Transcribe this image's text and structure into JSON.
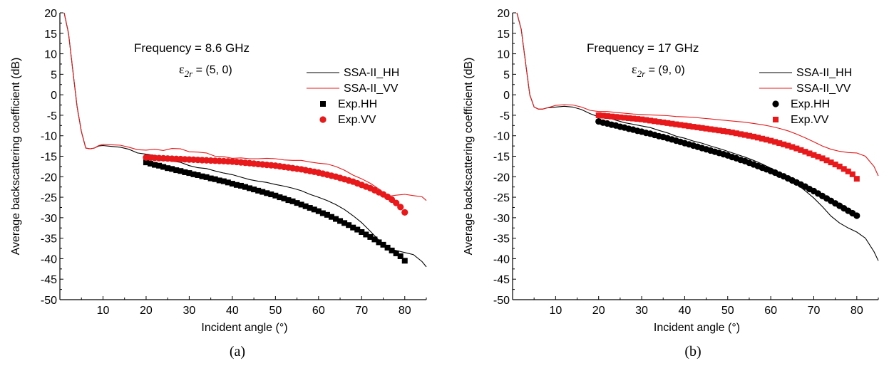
{
  "chart_data": [
    {
      "type": "line",
      "panel_label": "(a)",
      "annotation_freq": "Frequency = 8.6 GHz",
      "annotation_eps_symbol": "ε",
      "annotation_eps_sub": "2r",
      "annotation_eps_value": " = (5, 0)",
      "xlabel": "Incident angle (°)",
      "ylabel": "Average backscattering coefficient (dB)",
      "xlim": [
        0,
        85
      ],
      "ylim": [
        -50,
        20
      ],
      "xticks": [
        "10",
        "20",
        "30",
        "40",
        "50",
        "60",
        "70",
        "80"
      ],
      "yticks": [
        "20",
        "15",
        "10",
        "5",
        "0",
        "-5",
        "-10",
        "-15",
        "-20",
        "-25",
        "-30",
        "-35",
        "-40",
        "-45",
        "-50"
      ],
      "legend": [
        "SSA-II_HH",
        "SSA-II_VV",
        "Exp.HH",
        "Exp.VV"
      ],
      "series": [
        {
          "name": "SSA-II_HH",
          "kind": "line",
          "color": "#000000",
          "x": [
            1,
            2,
            3,
            4,
            5,
            6,
            7,
            8,
            9,
            10,
            12,
            14,
            16,
            18,
            20,
            22,
            24,
            26,
            28,
            30,
            32,
            34,
            36,
            38,
            40,
            42,
            44,
            46,
            48,
            50,
            52,
            54,
            56,
            58,
            60,
            62,
            64,
            66,
            68,
            70,
            72,
            74,
            76,
            78,
            80,
            82,
            84,
            85
          ],
          "y": [
            20,
            15,
            6,
            -3,
            -9,
            -13,
            -13.2,
            -13,
            -12.5,
            -12.4,
            -12.6,
            -12.8,
            -13.3,
            -14.2,
            -14.5,
            -14.8,
            -15.3,
            -16.2,
            -16.5,
            -17.3,
            -17.8,
            -18,
            -18.6,
            -19.1,
            -19.5,
            -20.1,
            -20.7,
            -21.1,
            -21.4,
            -21.9,
            -22.3,
            -22.8,
            -23.4,
            -24.3,
            -25,
            -25.8,
            -26.8,
            -28,
            -29.5,
            -31.2,
            -33.3,
            -35.5,
            -37.7,
            -38,
            -38.5,
            -39,
            -40.7,
            -42
          ]
        },
        {
          "name": "SSA-II_VV",
          "kind": "line",
          "color": "#e8191b",
          "x": [
            1,
            2,
            3,
            4,
            5,
            6,
            7,
            8,
            9,
            10,
            12,
            14,
            16,
            18,
            20,
            22,
            24,
            26,
            28,
            30,
            32,
            34,
            36,
            38,
            40,
            42,
            44,
            46,
            48,
            50,
            52,
            54,
            56,
            58,
            60,
            62,
            64,
            66,
            68,
            70,
            72,
            74,
            76,
            78,
            80,
            82,
            84,
            85
          ],
          "y": [
            20,
            15,
            6,
            -3,
            -9,
            -13,
            -13.2,
            -13,
            -12.4,
            -12.1,
            -12.2,
            -12.3,
            -12.8,
            -13.4,
            -13.5,
            -13.3,
            -13.6,
            -13.1,
            -13.2,
            -13.9,
            -14,
            -14.2,
            -15,
            -15.1,
            -15.5,
            -15.4,
            -15.6,
            -15.6,
            -15.5,
            -15.6,
            -15.9,
            -16,
            -16,
            -16.4,
            -16.7,
            -16.9,
            -17.5,
            -18.4,
            -19.6,
            -20.5,
            -21.6,
            -23,
            -24.8,
            -24.5,
            -24.3,
            -24.6,
            -24.9,
            -25.8
          ]
        },
        {
          "name": "Exp.HH",
          "kind": "square",
          "color": "#000000",
          "x": [
            20,
            21,
            22,
            23,
            24,
            25,
            26,
            27,
            28,
            29,
            30,
            31,
            32,
            33,
            34,
            35,
            36,
            37,
            38,
            39,
            40,
            41,
            42,
            43,
            44,
            45,
            46,
            47,
            48,
            49,
            50,
            51,
            52,
            53,
            54,
            55,
            56,
            57,
            58,
            59,
            60,
            61,
            62,
            63,
            64,
            65,
            66,
            67,
            68,
            69,
            70,
            71,
            72,
            73,
            74,
            75,
            76,
            77,
            78,
            79,
            80
          ],
          "y": [
            -16.5,
            -16.8,
            -17.1,
            -17.3,
            -17.6,
            -17.9,
            -18.1,
            -18.4,
            -18.6,
            -18.9,
            -19.1,
            -19.4,
            -19.6,
            -19.9,
            -20.1,
            -20.4,
            -20.6,
            -20.9,
            -21.1,
            -21.4,
            -21.7,
            -22,
            -22.2,
            -22.5,
            -22.8,
            -23.1,
            -23.4,
            -23.7,
            -24,
            -24.3,
            -24.6,
            -25,
            -25.3,
            -25.7,
            -26,
            -26.4,
            -26.8,
            -27.2,
            -27.6,
            -28,
            -28.4,
            -28.9,
            -29.3,
            -29.8,
            -30.3,
            -30.8,
            -31.3,
            -31.8,
            -32.4,
            -32.9,
            -33.5,
            -34.1,
            -34.7,
            -35.3,
            -36,
            -36.6,
            -37.3,
            -38,
            -38.7,
            -39.4,
            -40.5
          ]
        },
        {
          "name": "Exp.VV",
          "kind": "circle",
          "color": "#e8191b",
          "x": [
            20,
            21,
            22,
            23,
            24,
            25,
            26,
            27,
            28,
            29,
            30,
            31,
            32,
            33,
            34,
            35,
            36,
            37,
            38,
            39,
            40,
            41,
            42,
            43,
            44,
            45,
            46,
            47,
            48,
            49,
            50,
            51,
            52,
            53,
            54,
            55,
            56,
            57,
            58,
            59,
            60,
            61,
            62,
            63,
            64,
            65,
            66,
            67,
            68,
            69,
            70,
            71,
            72,
            73,
            74,
            75,
            76,
            77,
            78,
            79,
            80
          ],
          "y": [
            -15.3,
            -15.35,
            -15.4,
            -15.45,
            -15.5,
            -15.55,
            -15.6,
            -15.65,
            -15.7,
            -15.75,
            -15.8,
            -15.85,
            -15.9,
            -15.95,
            -16,
            -16.05,
            -16.1,
            -16.15,
            -16.2,
            -16.25,
            -16.3,
            -16.4,
            -16.5,
            -16.6,
            -16.7,
            -16.8,
            -16.9,
            -17,
            -17.1,
            -17.2,
            -17.3,
            -17.45,
            -17.6,
            -17.75,
            -17.9,
            -18.05,
            -18.2,
            -18.4,
            -18.6,
            -18.8,
            -19,
            -19.25,
            -19.5,
            -19.75,
            -20,
            -20.3,
            -20.6,
            -20.9,
            -21.2,
            -21.6,
            -22,
            -22.4,
            -22.8,
            -23.3,
            -23.8,
            -24.3,
            -24.9,
            -25.6,
            -26.4,
            -27.4,
            -28.7
          ]
        }
      ]
    },
    {
      "type": "line",
      "panel_label": "(b)",
      "annotation_freq": "Frequency = 17 GHz",
      "annotation_eps_symbol": "ε",
      "annotation_eps_sub": "2r",
      "annotation_eps_value": " = (9, 0)",
      "xlabel": "Incident angle (°)",
      "ylabel": "Average backscattering coefficient (dB)",
      "xlim": [
        0,
        85
      ],
      "ylim": [
        -50,
        20
      ],
      "xticks": [
        "10",
        "20",
        "30",
        "40",
        "50",
        "60",
        "70",
        "80"
      ],
      "yticks": [
        "20",
        "15",
        "10",
        "5",
        "0",
        "-5",
        "-10",
        "-15",
        "-20",
        "-25",
        "-30",
        "-35",
        "-40",
        "-45",
        "-50"
      ],
      "legend": [
        "SSA-II_HH",
        "SSA-II_VV",
        "Exp.HH",
        "Exp.VV"
      ],
      "series": [
        {
          "name": "SSA-II_HH",
          "kind": "line",
          "color": "#000000",
          "x": [
            1,
            2,
            3,
            4,
            5,
            6,
            7,
            8,
            10,
            12,
            14,
            16,
            18,
            20,
            22,
            24,
            26,
            28,
            30,
            32,
            34,
            36,
            38,
            40,
            42,
            44,
            46,
            48,
            50,
            52,
            54,
            56,
            58,
            60,
            62,
            64,
            66,
            68,
            70,
            72,
            74,
            76,
            78,
            80,
            82,
            84,
            85
          ],
          "y": [
            20,
            16,
            8,
            0,
            -3,
            -3.5,
            -3.5,
            -3.2,
            -3,
            -2.8,
            -3,
            -3.6,
            -4.6,
            -5.4,
            -5.5,
            -6.2,
            -6.8,
            -7.2,
            -7.6,
            -8,
            -8.7,
            -9.3,
            -10.1,
            -10.6,
            -11.3,
            -11.8,
            -12.5,
            -13.1,
            -13.8,
            -14.5,
            -15.2,
            -16,
            -16.9,
            -17.9,
            -19,
            -20.3,
            -21.8,
            -23.4,
            -25.2,
            -27.3,
            -29.6,
            -31.3,
            -32.5,
            -33.5,
            -35,
            -38.3,
            -40.5
          ]
        },
        {
          "name": "SSA-II_VV",
          "kind": "line",
          "color": "#e8191b",
          "x": [
            1,
            2,
            3,
            4,
            5,
            6,
            7,
            8,
            10,
            12,
            14,
            16,
            18,
            20,
            22,
            24,
            26,
            28,
            30,
            32,
            34,
            36,
            38,
            40,
            42,
            44,
            46,
            48,
            50,
            52,
            54,
            56,
            58,
            60,
            62,
            64,
            66,
            68,
            70,
            72,
            74,
            76,
            78,
            80,
            82,
            84,
            85
          ],
          "y": [
            20,
            16,
            8,
            0,
            -3,
            -3.5,
            -3.5,
            -3.2,
            -2.6,
            -2.4,
            -2.5,
            -3,
            -3.8,
            -4.1,
            -4.1,
            -4.3,
            -4.5,
            -4.7,
            -4.8,
            -4.9,
            -5,
            -5.1,
            -5.3,
            -5.4,
            -5.5,
            -5.7,
            -5.9,
            -6.1,
            -6.3,
            -6.5,
            -6.7,
            -7,
            -7.3,
            -7.7,
            -8.2,
            -8.8,
            -9.6,
            -10.5,
            -11.5,
            -12.5,
            -13.3,
            -13.8,
            -14.1,
            -14.2,
            -15,
            -17.5,
            -19.8
          ]
        },
        {
          "name": "Exp.HH",
          "kind": "circle",
          "color": "#000000",
          "x": [
            20,
            21,
            22,
            23,
            24,
            25,
            26,
            27,
            28,
            29,
            30,
            31,
            32,
            33,
            34,
            35,
            36,
            37,
            38,
            39,
            40,
            41,
            42,
            43,
            44,
            45,
            46,
            47,
            48,
            49,
            50,
            51,
            52,
            53,
            54,
            55,
            56,
            57,
            58,
            59,
            60,
            61,
            62,
            63,
            64,
            65,
            66,
            67,
            68,
            69,
            70,
            71,
            72,
            73,
            74,
            75,
            76,
            77,
            78,
            79,
            80
          ],
          "y": [
            -6.5,
            -6.8,
            -7,
            -7.3,
            -7.5,
            -7.8,
            -8,
            -8.3,
            -8.5,
            -8.8,
            -9,
            -9.3,
            -9.5,
            -9.8,
            -10.1,
            -10.3,
            -10.6,
            -10.9,
            -11.2,
            -11.5,
            -11.8,
            -12.1,
            -12.4,
            -12.7,
            -13,
            -13.3,
            -13.6,
            -13.9,
            -14.2,
            -14.5,
            -14.8,
            -15.2,
            -15.5,
            -15.9,
            -16.2,
            -16.6,
            -17,
            -17.4,
            -17.8,
            -18.2,
            -18.6,
            -19,
            -19.5,
            -19.9,
            -20.4,
            -20.9,
            -21.4,
            -21.9,
            -22.4,
            -23,
            -23.5,
            -24.1,
            -24.7,
            -25.3,
            -25.9,
            -26.5,
            -27.1,
            -27.7,
            -28.3,
            -28.9,
            -29.5
          ]
        },
        {
          "name": "Exp.VV",
          "kind": "square",
          "color": "#e8191b",
          "x": [
            20,
            21,
            22,
            23,
            24,
            25,
            26,
            27,
            28,
            29,
            30,
            31,
            32,
            33,
            34,
            35,
            36,
            37,
            38,
            39,
            40,
            41,
            42,
            43,
            44,
            45,
            46,
            47,
            48,
            49,
            50,
            51,
            52,
            53,
            54,
            55,
            56,
            57,
            58,
            59,
            60,
            61,
            62,
            63,
            64,
            65,
            66,
            67,
            68,
            69,
            70,
            71,
            72,
            73,
            74,
            75,
            76,
            77,
            78,
            79,
            80
          ],
          "y": [
            -5,
            -5.1,
            -5.2,
            -5.3,
            -5.4,
            -5.5,
            -5.6,
            -5.7,
            -5.8,
            -5.9,
            -6,
            -6.15,
            -6.3,
            -6.45,
            -6.6,
            -6.75,
            -6.9,
            -7.05,
            -7.2,
            -7.35,
            -7.5,
            -7.65,
            -7.8,
            -7.95,
            -8.1,
            -8.25,
            -8.4,
            -8.55,
            -8.7,
            -8.85,
            -9,
            -9.2,
            -9.4,
            -9.6,
            -9.8,
            -10,
            -10.2,
            -10.45,
            -10.7,
            -10.95,
            -11.2,
            -11.5,
            -11.8,
            -12.1,
            -12.4,
            -12.75,
            -13.1,
            -13.5,
            -13.9,
            -14.3,
            -14.7,
            -15.1,
            -15.5,
            -16,
            -16.5,
            -17,
            -17.5,
            -18.1,
            -18.7,
            -19.4,
            -20.5
          ]
        }
      ]
    }
  ]
}
